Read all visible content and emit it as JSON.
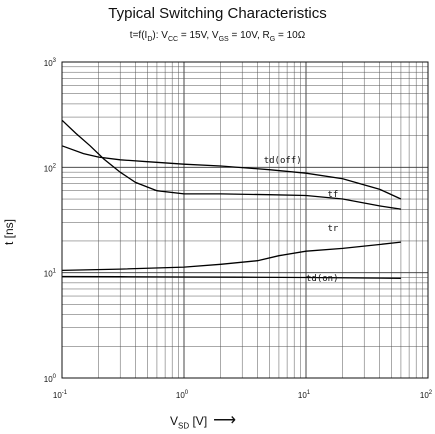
{
  "chart_data": {
    "type": "line",
    "title": "Typical Switching Characteristics",
    "subtitle": {
      "t_prefix": "t=f(I",
      "t_sub": "D",
      "t_mid": "): V",
      "vcc_sub": "CC",
      "vcc_val": " = 15V, V",
      "vgs_sub": "GS",
      "vgs_val": " = 10V, R",
      "rg_sub": "G",
      "rg_val": " = 10Ω"
    },
    "xlabel": {
      "main": "V",
      "sub": "SD",
      "unit": " [V]",
      "arrow": "⟶"
    },
    "ylabel": "t [ns]",
    "x_scale": "log",
    "y_scale": "log",
    "xlim": [
      0.1,
      100
    ],
    "ylim": [
      1,
      1000
    ],
    "grid": true,
    "x_ticks": [
      {
        "base": "10",
        "exp": "-1",
        "value": 0.1
      },
      {
        "base": "10",
        "exp": "0",
        "value": 1
      },
      {
        "base": "10",
        "exp": "1",
        "value": 10
      },
      {
        "base": "10",
        "exp": "2",
        "value": 100
      }
    ],
    "y_ticks": [
      {
        "base": "10",
        "exp": "0",
        "value": 1
      },
      {
        "base": "10",
        "exp": "1",
        "value": 10
      },
      {
        "base": "10",
        "exp": "2",
        "value": 100
      },
      {
        "base": "10",
        "exp": "3",
        "value": 1000
      }
    ],
    "series": [
      {
        "name": "td(off)",
        "label_at": [
          4.5,
          110
        ],
        "points": [
          [
            0.1,
            160
          ],
          [
            0.15,
            135
          ],
          [
            0.2,
            125
          ],
          [
            0.3,
            118
          ],
          [
            0.5,
            113
          ],
          [
            1,
            107
          ],
          [
            2,
            103
          ],
          [
            5,
            95
          ],
          [
            10,
            88
          ],
          [
            20,
            78
          ],
          [
            40,
            62
          ],
          [
            60,
            50
          ]
        ]
      },
      {
        "name": "tf",
        "label_at": [
          15,
          52
        ],
        "points": [
          [
            0.1,
            280
          ],
          [
            0.13,
            210
          ],
          [
            0.17,
            160
          ],
          [
            0.22,
            120
          ],
          [
            0.3,
            90
          ],
          [
            0.4,
            72
          ],
          [
            0.6,
            60
          ],
          [
            1,
            56
          ],
          [
            2,
            56
          ],
          [
            5,
            55
          ],
          [
            10,
            54
          ],
          [
            20,
            50
          ],
          [
            40,
            43
          ],
          [
            60,
            40
          ]
        ]
      },
      {
        "name": "tr",
        "label_at": [
          15,
          25
        ],
        "points": [
          [
            0.1,
            10.5
          ],
          [
            0.3,
            10.8
          ],
          [
            1,
            11.3
          ],
          [
            2,
            12
          ],
          [
            4,
            13
          ],
          [
            6,
            14.5
          ],
          [
            10,
            16
          ],
          [
            20,
            17
          ],
          [
            40,
            18.5
          ],
          [
            60,
            19.5
          ]
        ]
      },
      {
        "name": "td(on)",
        "label_at": [
          10,
          8.3
        ],
        "points": [
          [
            0.1,
            9.2
          ],
          [
            0.3,
            9.15
          ],
          [
            1,
            9.1
          ],
          [
            3,
            9.05
          ],
          [
            10,
            9.0
          ],
          [
            30,
            8.9
          ],
          [
            60,
            8.85
          ]
        ]
      }
    ]
  }
}
